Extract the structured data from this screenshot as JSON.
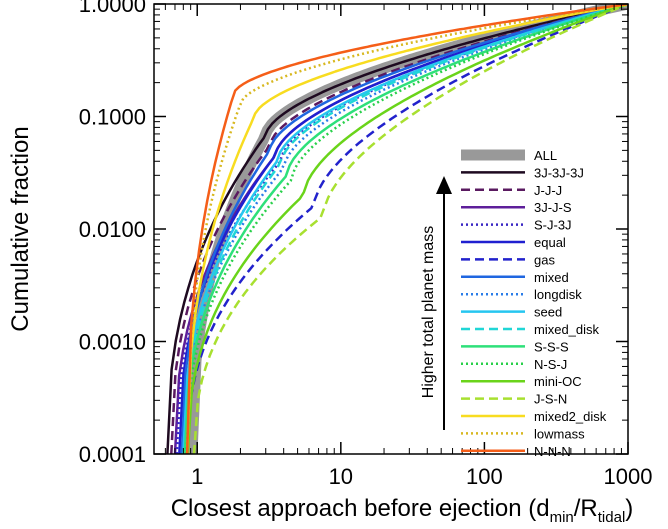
{
  "chart_data": {
    "type": "line",
    "xlabel_main": "Closest approach before ejection (d",
    "xlabel_sub1": "min",
    "xlabel_mid": "/R",
    "xlabel_sub2": "tidal",
    "xlabel_end": ")",
    "ylabel": "Cumulative fraction",
    "xscale": "log",
    "yscale": "log",
    "xlim": [
      0.5,
      1000
    ],
    "ylim": [
      0.0001,
      1.0
    ],
    "x_ticks": [
      1,
      10,
      100,
      1000
    ],
    "x_tick_labels": [
      "1",
      "10",
      "100",
      "1000"
    ],
    "y_ticks": [
      0.0001,
      0.001,
      0.01,
      0.1,
      1.0
    ],
    "y_tick_labels": [
      "0.0001",
      "0.0010",
      "0.0100",
      "0.1000",
      "1.0000"
    ],
    "legend_position": "bottom-right",
    "annotation": "Higher total planet mass",
    "series": [
      {
        "name": "ALL",
        "color": "#999999",
        "dash": "solid",
        "width": 11,
        "x0": 0.92,
        "x_mid": 3.0,
        "y_mid": 0.068
      },
      {
        "name": "3J-3J-3J",
        "color": "#1e0a20",
        "dash": "solid",
        "width": 2.5,
        "x0": 0.62,
        "x_mid": 3.0,
        "y_mid": 0.068
      },
      {
        "name": "J-J-J",
        "color": "#5a1a60",
        "dash": "dash",
        "width": 2.5,
        "x0": 0.66,
        "x_mid": 3.2,
        "y_mid": 0.055
      },
      {
        "name": "3J-J-S",
        "color": "#5e1f9a",
        "dash": "solid",
        "width": 2.5,
        "x0": 0.7,
        "x_mid": 3.5,
        "y_mid": 0.045
      },
      {
        "name": "S-J-3J",
        "color": "#3a27c4",
        "dash": "dot",
        "width": 2.5,
        "x0": 0.72,
        "x_mid": 3.8,
        "y_mid": 0.04
      },
      {
        "name": "equal",
        "color": "#2020d0",
        "dash": "solid",
        "width": 2.5,
        "x0": 0.75,
        "x_mid": 3.5,
        "y_mid": 0.045
      },
      {
        "name": "gas",
        "color": "#2222cc",
        "dash": "dash",
        "width": 2.5,
        "x0": 0.85,
        "x_mid": 6.5,
        "y_mid": 0.016
      },
      {
        "name": "mixed",
        "color": "#1f66e0",
        "dash": "solid",
        "width": 2.5,
        "x0": 0.78,
        "x_mid": 3.2,
        "y_mid": 0.05
      },
      {
        "name": "longdisk",
        "color": "#2b7de8",
        "dash": "dot",
        "width": 2.5,
        "x0": 0.8,
        "x_mid": 4.0,
        "y_mid": 0.035
      },
      {
        "name": "seed",
        "color": "#26c6f0",
        "dash": "solid",
        "width": 2.5,
        "x0": 0.8,
        "x_mid": 3.6,
        "y_mid": 0.04
      },
      {
        "name": "mixed_disk",
        "color": "#20d6d6",
        "dash": "dash",
        "width": 2.5,
        "x0": 0.82,
        "x_mid": 3.8,
        "y_mid": 0.038
      },
      {
        "name": "S-S-S",
        "color": "#2ee07a",
        "dash": "solid",
        "width": 2.5,
        "x0": 0.82,
        "x_mid": 4.2,
        "y_mid": 0.03
      },
      {
        "name": "N-S-J",
        "color": "#28d04a",
        "dash": "dot",
        "width": 2.5,
        "x0": 0.84,
        "x_mid": 4.5,
        "y_mid": 0.027
      },
      {
        "name": "mini-OC",
        "color": "#6ad41a",
        "dash": "solid",
        "width": 2.5,
        "x0": 0.86,
        "x_mid": 5.5,
        "y_mid": 0.02
      },
      {
        "name": "J-S-N",
        "color": "#a8e030",
        "dash": "dash",
        "width": 2.5,
        "x0": 0.95,
        "x_mid": 7.5,
        "y_mid": 0.013
      },
      {
        "name": "mixed2_disk",
        "color": "#f8dc20",
        "dash": "solid",
        "width": 2.5,
        "x0": 0.85,
        "x_mid": 2.5,
        "y_mid": 0.1
      },
      {
        "name": "lowmass",
        "color": "#d8b820",
        "dash": "dot",
        "width": 2.5,
        "x0": 0.85,
        "x_mid": 2.0,
        "y_mid": 0.13
      },
      {
        "name": "N-N-N",
        "color": "#f55e18",
        "dash": "solid",
        "width": 2.5,
        "x0": 0.85,
        "x_mid": 1.8,
        "y_mid": 0.16
      }
    ]
  }
}
